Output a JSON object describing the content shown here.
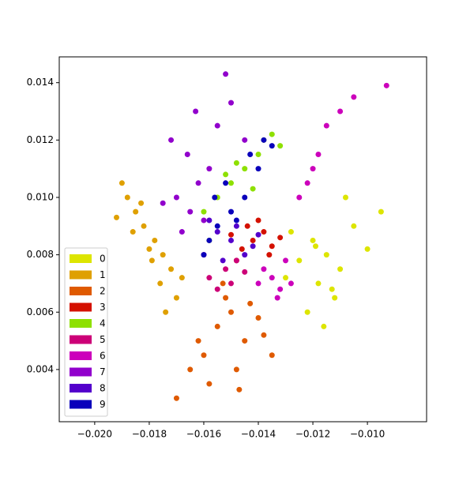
{
  "chart_data": {
    "type": "scatter",
    "xlim": [
      -0.0213,
      -0.00783
    ],
    "ylim": [
      0.00218,
      0.0149
    ],
    "xticks": [
      {
        "value": -0.02,
        "label": "−0.020"
      },
      {
        "value": -0.018,
        "label": "−0.018"
      },
      {
        "value": -0.016,
        "label": "−0.016"
      },
      {
        "value": -0.014,
        "label": "−0.014"
      },
      {
        "value": -0.012,
        "label": "−0.012"
      },
      {
        "value": -0.01,
        "label": "−0.010"
      }
    ],
    "yticks": [
      0.004,
      0.006,
      0.008,
      {
        "value": 0.01,
        "label": "0.010"
      },
      0.012,
      0.014
    ],
    "legend": "lower left",
    "series": [
      {
        "name": "0",
        "color": "#dde500",
        "x": [
          -0.0115,
          -0.012,
          -0.011,
          -0.0125,
          -0.0105,
          -0.0118,
          -0.0112,
          -0.0128,
          -0.01,
          -0.0122,
          -0.0108,
          -0.0116,
          -0.013,
          -0.0095,
          -0.0113,
          -0.0119
        ],
        "y": [
          0.008,
          0.0085,
          0.0075,
          0.0078,
          0.009,
          0.007,
          0.0065,
          0.0088,
          0.0082,
          0.006,
          0.01,
          0.0055,
          0.0072,
          0.0095,
          0.0068,
          0.0083
        ]
      },
      {
        "name": "1",
        "color": "#dfa000",
        "x": [
          -0.0188,
          -0.0185,
          -0.0182,
          -0.0178,
          -0.0175,
          -0.0172,
          -0.019,
          -0.018,
          -0.0176,
          -0.017,
          -0.0186,
          -0.0183,
          -0.0192,
          -0.0174,
          -0.0179,
          -0.0168
        ],
        "y": [
          0.01,
          0.0095,
          0.009,
          0.0085,
          0.008,
          0.0075,
          0.0105,
          0.0082,
          0.007,
          0.0065,
          0.0088,
          0.0098,
          0.0093,
          0.006,
          0.0078,
          0.0072
        ]
      },
      {
        "name": "2",
        "color": "#df5a00",
        "x": [
          -0.015,
          -0.0155,
          -0.0145,
          -0.016,
          -0.014,
          -0.0152,
          -0.0148,
          -0.0165,
          -0.0135,
          -0.0158,
          -0.0143,
          -0.017,
          -0.0138,
          -0.0153,
          -0.0147,
          -0.0162
        ],
        "y": [
          0.006,
          0.0055,
          0.005,
          0.0045,
          0.0058,
          0.0065,
          0.004,
          0.004,
          0.0045,
          0.0035,
          0.0063,
          0.003,
          0.0052,
          0.007,
          0.0033,
          0.005
        ]
      },
      {
        "name": "3",
        "color": "#d41100",
        "x": [
          -0.0142,
          -0.0138,
          -0.0146,
          -0.0135,
          -0.015,
          -0.014,
          -0.0132,
          -0.0148,
          -0.0144,
          -0.0136
        ],
        "y": [
          0.0085,
          0.0088,
          0.0082,
          0.0083,
          0.0087,
          0.0092,
          0.0086,
          0.0078,
          0.009,
          0.008
        ]
      },
      {
        "name": "4",
        "color": "#8ee000",
        "x": [
          -0.015,
          -0.0145,
          -0.014,
          -0.0155,
          -0.016,
          -0.0138,
          -0.0148,
          -0.0135,
          -0.0152,
          -0.0142,
          -0.0158,
          -0.0132
        ],
        "y": [
          0.0105,
          0.011,
          0.0115,
          0.01,
          0.0095,
          0.012,
          0.0112,
          0.0122,
          0.0108,
          0.0103,
          0.0085,
          0.0118
        ]
      },
      {
        "name": "5",
        "color": "#cc0077",
        "x": [
          -0.0152,
          -0.0158,
          -0.0148,
          -0.0155,
          -0.0145,
          -0.016,
          -0.015
        ],
        "y": [
          0.0075,
          0.0072,
          0.0078,
          0.0068,
          0.0074,
          0.008,
          0.007
        ]
      },
      {
        "name": "6",
        "color": "#cc00bb",
        "x": [
          -0.0135,
          -0.0132,
          -0.0138,
          -0.013,
          -0.0128,
          -0.0125,
          -0.0122,
          -0.012,
          -0.0118,
          -0.0115,
          -0.011,
          -0.0105,
          -0.0093,
          -0.014,
          -0.0133
        ],
        "y": [
          0.0072,
          0.0068,
          0.0075,
          0.0078,
          0.007,
          0.01,
          0.0105,
          0.011,
          0.0115,
          0.0125,
          0.013,
          0.0135,
          0.0139,
          0.007,
          0.0065
        ]
      },
      {
        "name": "7",
        "color": "#9100cc",
        "x": [
          -0.0165,
          -0.017,
          -0.016,
          -0.0168,
          -0.0162,
          -0.0175,
          -0.0158,
          -0.0166,
          -0.0172,
          -0.0155,
          -0.0163,
          -0.015,
          -0.0145,
          -0.0152
        ],
        "y": [
          0.0095,
          0.01,
          0.0092,
          0.0088,
          0.0105,
          0.0098,
          0.011,
          0.0115,
          0.012,
          0.0125,
          0.013,
          0.0133,
          0.012,
          0.0143
        ]
      },
      {
        "name": "8",
        "color": "#5400cc",
        "x": [
          -0.015,
          -0.0145,
          -0.0155,
          -0.0148,
          -0.0142,
          -0.0153,
          -0.014,
          -0.0158
        ],
        "y": [
          0.0085,
          0.008,
          0.0088,
          0.009,
          0.0083,
          0.0078,
          0.0087,
          0.0092
        ]
      },
      {
        "name": "9",
        "color": "#0a00bb",
        "x": [
          -0.015,
          -0.0155,
          -0.0145,
          -0.0158,
          -0.014,
          -0.0152,
          -0.016,
          -0.0138,
          -0.0148,
          -0.0143,
          -0.0156,
          -0.0135
        ],
        "y": [
          0.0095,
          0.009,
          0.01,
          0.0085,
          0.011,
          0.0105,
          0.008,
          0.012,
          0.0092,
          0.0115,
          0.01,
          0.0118
        ]
      }
    ]
  }
}
